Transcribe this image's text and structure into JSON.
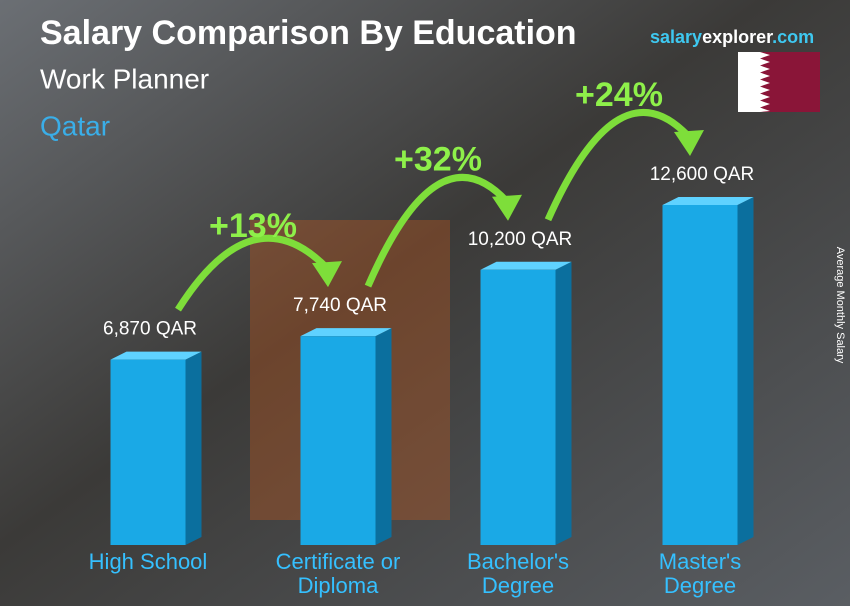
{
  "chart_data": {
    "type": "bar3d",
    "title": "Salary Comparison By Education",
    "subtitle": "Work Planner",
    "location": "Qatar",
    "site": [
      "salary",
      "explorer",
      ".com"
    ],
    "y_axis_label": "Average Monthly Salary",
    "categories": [
      "High School",
      "Certificate or Diploma",
      "Bachelor's Degree",
      "Master's Degree"
    ],
    "values": [
      6870,
      7740,
      10200,
      12600
    ],
    "value_labels": [
      "6,870 QAR",
      "7,740 QAR",
      "10,200 QAR",
      "12,600 QAR"
    ],
    "color": "#1aa9e6",
    "changes": [
      "+13%",
      "+32%",
      "+24%"
    ]
  }
}
